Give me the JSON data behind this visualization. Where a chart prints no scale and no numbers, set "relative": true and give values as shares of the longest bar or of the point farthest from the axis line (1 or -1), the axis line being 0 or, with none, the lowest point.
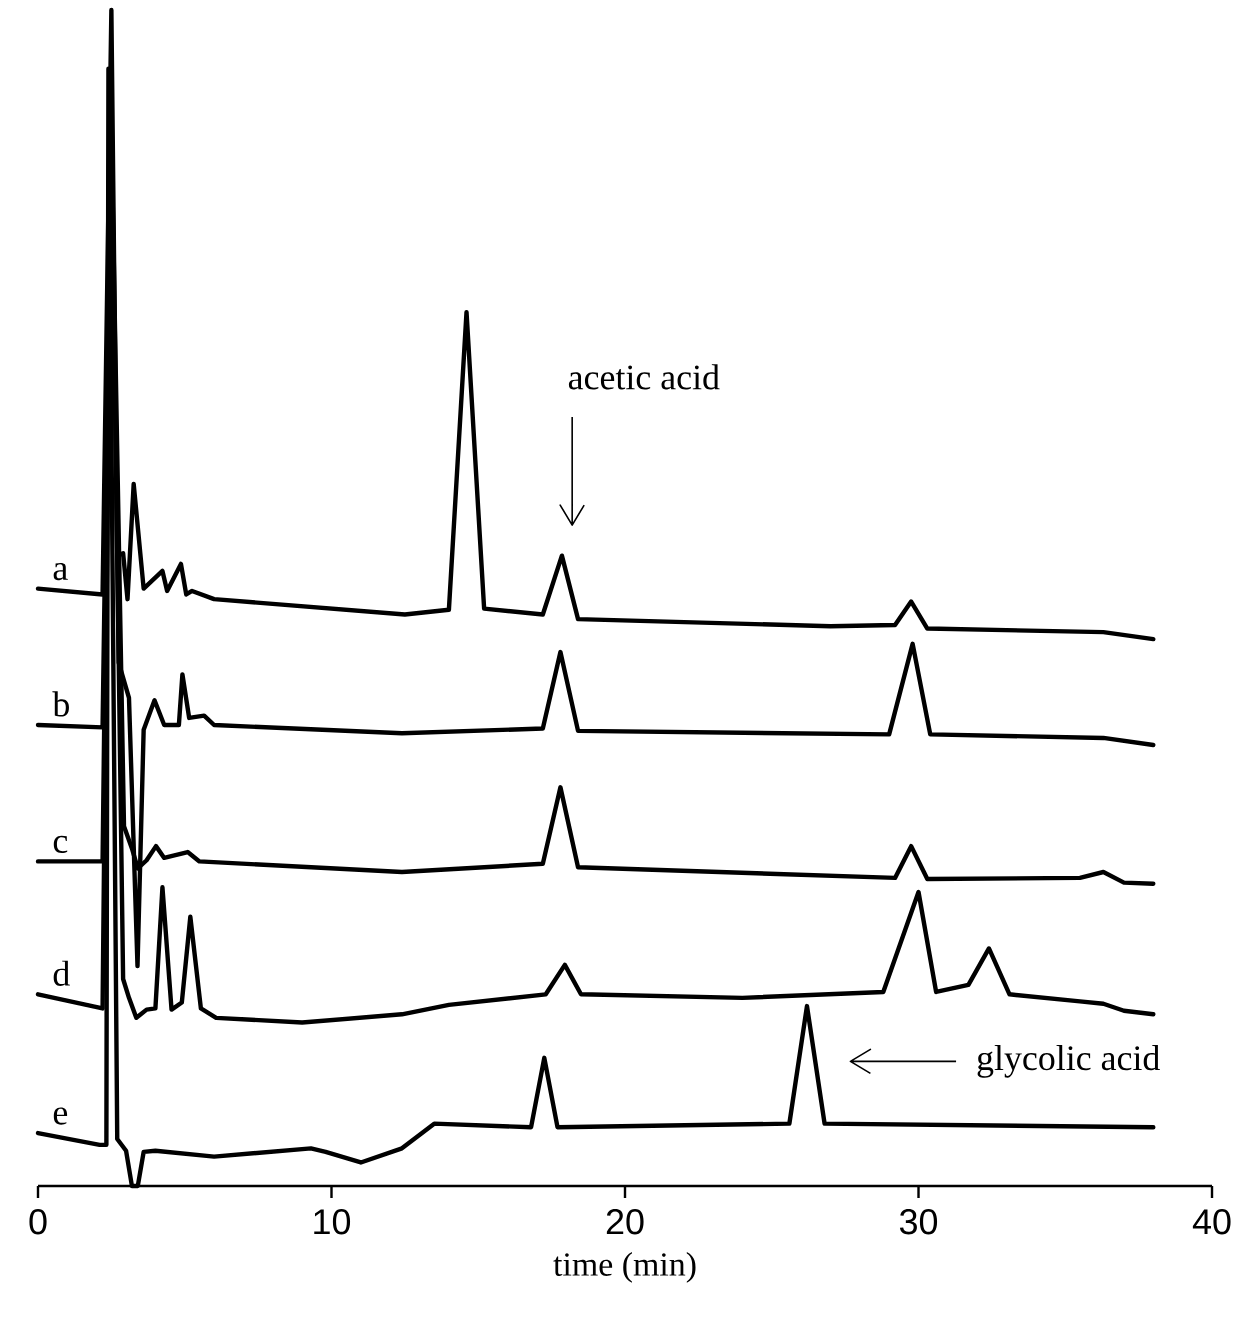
{
  "chart_data": {
    "type": "line",
    "relative": true,
    "xlabel": "time (min)",
    "xlim": [
      0,
      40
    ],
    "xticks": [
      0,
      10,
      20,
      30,
      40
    ],
    "series": [
      {
        "name": "a",
        "color": "#000000",
        "x": [
          0,
          2.2,
          2.5,
          2.7,
          2.9,
          3.05,
          3.26,
          3.6,
          4.24,
          4.4,
          4.87,
          5.05,
          5.25,
          6.0,
          12.5,
          14.0,
          14.6,
          15.2,
          17.2,
          17.85,
          18.4,
          27.0,
          29.2,
          29.75,
          30.3,
          36.3,
          38.0
        ],
        "values": [
          0.508,
          0.503,
          1.0,
          0.536,
          0.538,
          0.499,
          0.597,
          0.508,
          0.523,
          0.506,
          0.529,
          0.503,
          0.506,
          0.499,
          0.486,
          0.49,
          0.743,
          0.491,
          0.486,
          0.536,
          0.482,
          0.476,
          0.477,
          0.497,
          0.474,
          0.471,
          0.465
        ]
      },
      {
        "name": "b",
        "color": "#000000",
        "x": [
          0,
          2.2,
          2.5,
          2.75,
          3.1,
          3.39,
          3.6,
          3.97,
          4.3,
          4.8,
          4.92,
          5.15,
          5.66,
          6.0,
          12.4,
          17.2,
          17.8,
          18.4,
          29.0,
          29.8,
          30.4,
          36.3,
          38.0
        ],
        "values": [
          0.392,
          0.39,
          0.9,
          0.445,
          0.415,
          0.187,
          0.388,
          0.413,
          0.392,
          0.392,
          0.435,
          0.398,
          0.4,
          0.392,
          0.385,
          0.389,
          0.454,
          0.387,
          0.384,
          0.461,
          0.384,
          0.381,
          0.375
        ]
      },
      {
        "name": "c",
        "color": "#000000",
        "x": [
          0,
          2.2,
          2.5,
          2.93,
          3.2,
          3.4,
          3.7,
          4.02,
          4.3,
          5.1,
          5.5,
          12.4,
          17.2,
          17.8,
          18.4,
          29.2,
          29.75,
          30.3,
          35.5,
          36.3,
          37.0,
          38.0
        ],
        "values": [
          0.276,
          0.276,
          0.9,
          0.306,
          0.287,
          0.27,
          0.277,
          0.289,
          0.279,
          0.284,
          0.276,
          0.267,
          0.274,
          0.339,
          0.271,
          0.262,
          0.289,
          0.261,
          0.262,
          0.267,
          0.258,
          0.257
        ]
      },
      {
        "name": "d",
        "color": "#000000",
        "x": [
          0,
          2.2,
          2.5,
          2.9,
          3.1,
          3.35,
          3.7,
          4.0,
          4.24,
          4.55,
          4.9,
          5.19,
          5.55,
          6.07,
          9.0,
          12.4,
          14.0,
          17.3,
          17.95,
          18.5,
          24.0,
          28.8,
          30.0,
          30.6,
          31.7,
          32.4,
          33.1,
          35.5,
          36.3,
          37.0,
          38.0
        ],
        "values": [
          0.163,
          0.151,
          0.9,
          0.176,
          0.16,
          0.143,
          0.15,
          0.151,
          0.254,
          0.15,
          0.156,
          0.229,
          0.151,
          0.143,
          0.139,
          0.146,
          0.154,
          0.163,
          0.188,
          0.163,
          0.16,
          0.165,
          0.25,
          0.165,
          0.171,
          0.202,
          0.163,
          0.157,
          0.155,
          0.149,
          0.146
        ]
      },
      {
        "name": "e",
        "color": "#000000",
        "x": [
          0,
          2.1,
          2.33,
          2.4,
          2.7,
          3.0,
          3.2,
          3.4,
          3.6,
          4.0,
          6.0,
          9.3,
          9.8,
          11.0,
          12.4,
          13.5,
          16.8,
          17.25,
          17.7,
          25.6,
          26.2,
          26.8,
          38.0
        ],
        "values": [
          0.045,
          0.035,
          0.035,
          0.95,
          0.04,
          0.03,
          0.0,
          0.0,
          0.029,
          0.03,
          0.025,
          0.032,
          0.029,
          0.02,
          0.032,
          0.053,
          0.05,
          0.109,
          0.05,
          0.053,
          0.153,
          0.053,
          0.05
        ]
      }
    ],
    "annotations": [
      "acetic acid",
      "glycolic acid"
    ]
  }
}
